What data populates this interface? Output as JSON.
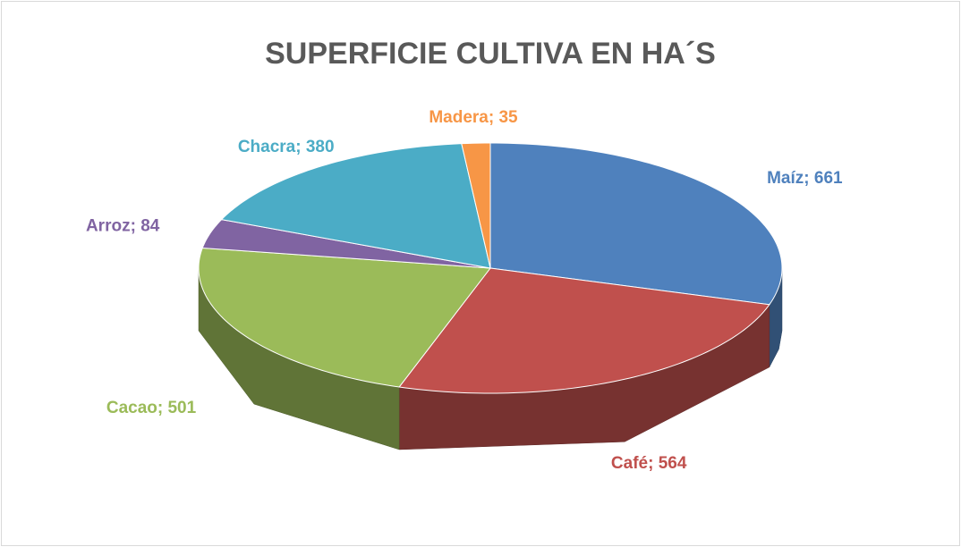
{
  "chart_data": {
    "type": "pie",
    "title": "SUPERFICIE CULTIVA EN HA´S",
    "categories": [
      "Maíz",
      "Café",
      "Cacao",
      "Arroz",
      "Chacra",
      "Madera"
    ],
    "values": [
      661,
      564,
      501,
      84,
      380,
      35
    ],
    "label_separator": "; ",
    "colors": [
      "#4f81bd",
      "#c0504d",
      "#9bbb59",
      "#8064a2",
      "#4bacc6",
      "#f79646"
    ]
  }
}
